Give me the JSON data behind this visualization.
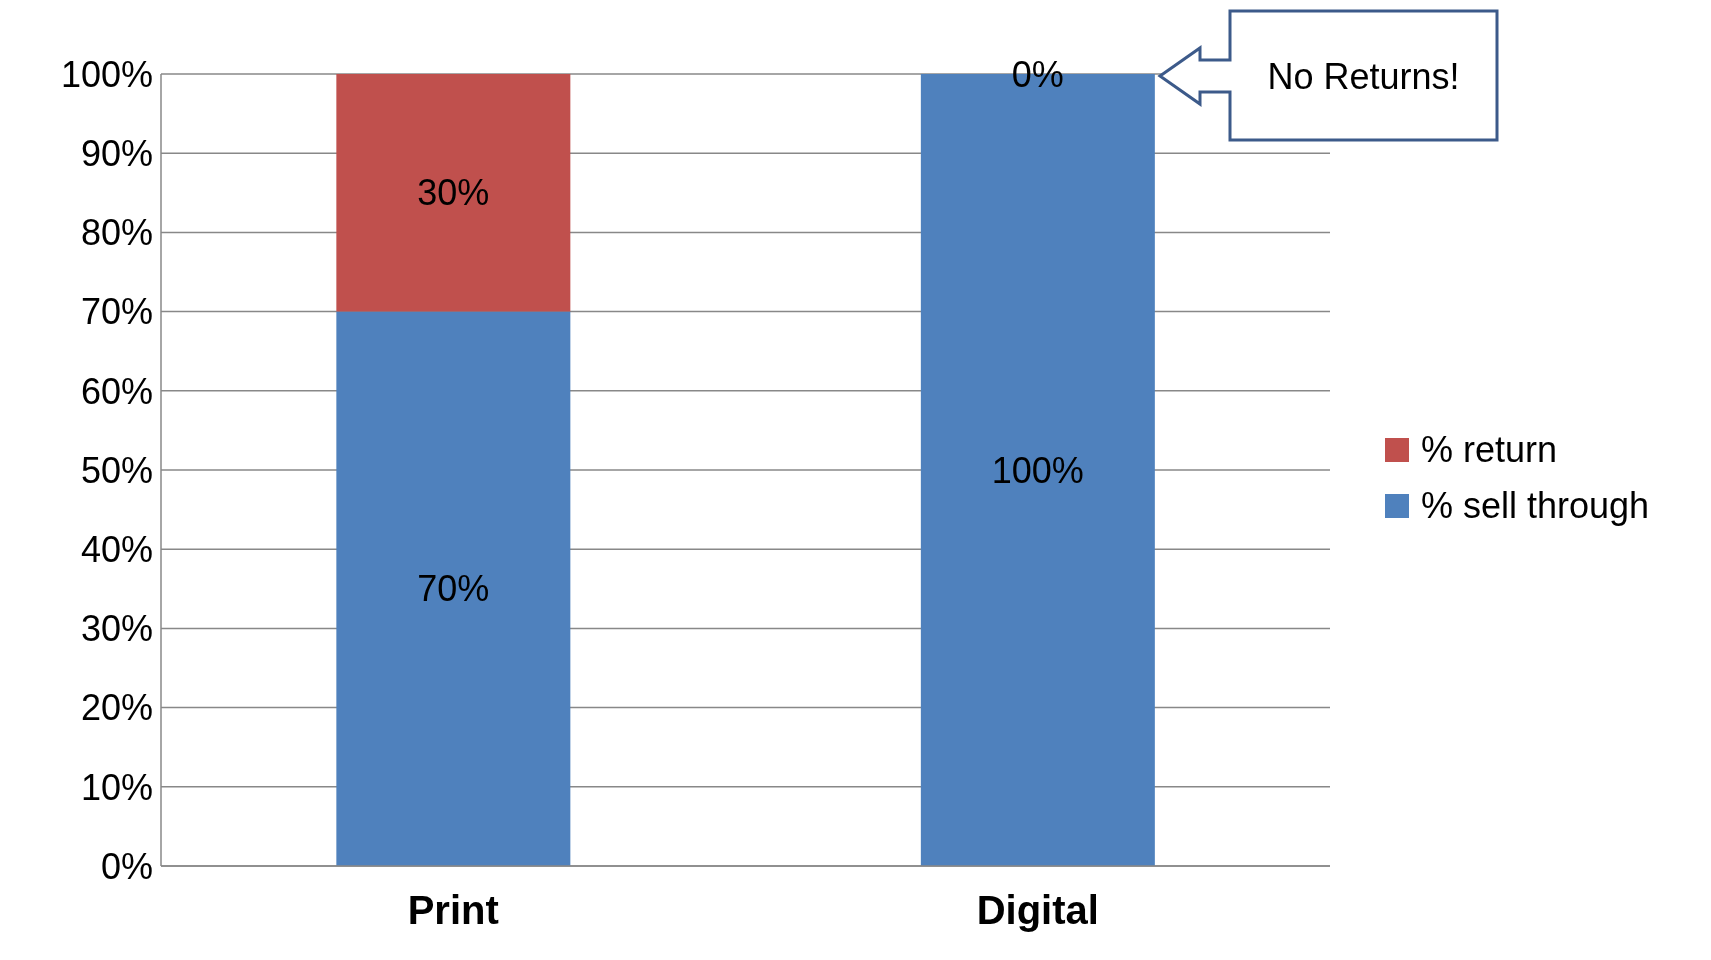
{
  "chart_data": {
    "type": "bar",
    "stacked": true,
    "categories": [
      "Print",
      "Digital"
    ],
    "series": [
      {
        "name": "% sell through",
        "color": "#4f81bd",
        "values": [
          70,
          100
        ],
        "value_labels": [
          "70%",
          "100%"
        ]
      },
      {
        "name": "% return",
        "color": "#c0504d",
        "values": [
          30,
          0
        ],
        "value_labels": [
          "30%",
          "0%"
        ]
      }
    ],
    "ylim": [
      0,
      100
    ],
    "yticks": [
      {
        "value": 0,
        "label": "0%"
      },
      {
        "value": 10,
        "label": "10%"
      },
      {
        "value": 20,
        "label": "20%"
      },
      {
        "value": 30,
        "label": "30%"
      },
      {
        "value": 40,
        "label": "40%"
      },
      {
        "value": 50,
        "label": "50%"
      },
      {
        "value": 60,
        "label": "60%"
      },
      {
        "value": 70,
        "label": "70%"
      },
      {
        "value": 80,
        "label": "80%"
      },
      {
        "value": 90,
        "label": "90%"
      },
      {
        "value": 100,
        "label": "100%"
      }
    ],
    "grid": "y",
    "legend": "right",
    "annotations": [
      "No Returns!"
    ]
  }
}
